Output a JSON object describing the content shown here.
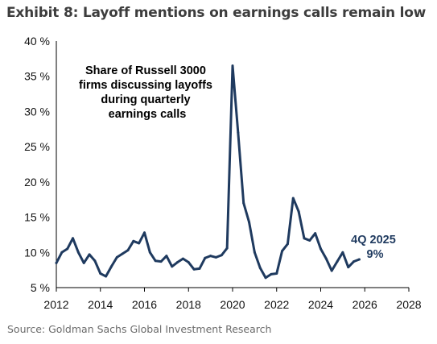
{
  "header": {
    "title": "Exhibit 8: Layoff mentions on earnings calls remain low"
  },
  "footer": {
    "source": "Source: Goldman Sachs Global Investment Research"
  },
  "colors": {
    "series": "#1f3a5f",
    "axis": "#000000",
    "text": "#111111"
  },
  "chart_data": {
    "type": "line",
    "title": "",
    "xlabel": "",
    "ylabel": "",
    "xlim": [
      2012,
      2028
    ],
    "ylim": [
      5,
      40
    ],
    "grid": false,
    "legend": "none",
    "x_ticks": [
      {
        "value": 2012,
        "label": "2012"
      },
      {
        "value": 2014,
        "label": "2014"
      },
      {
        "value": 2016,
        "label": "2016"
      },
      {
        "value": 2018,
        "label": "2018"
      },
      {
        "value": 2020,
        "label": "2020"
      },
      {
        "value": 2022,
        "label": "2022"
      },
      {
        "value": 2024,
        "label": "2024"
      },
      {
        "value": 2026,
        "label": "2026"
      },
      {
        "value": 2028,
        "label": "2028"
      }
    ],
    "y_ticks": [
      {
        "value": 5,
        "label": "5 %"
      },
      {
        "value": 10,
        "label": "10 %"
      },
      {
        "value": 15,
        "label": "15 %"
      },
      {
        "value": 20,
        "label": "20 %"
      },
      {
        "value": 25,
        "label": "25 %"
      },
      {
        "value": 30,
        "label": "30 %"
      },
      {
        "value": 35,
        "label": "35 %"
      },
      {
        "value": 40,
        "label": "40 %"
      }
    ],
    "annotation": [
      "Share of Russell 3000",
      "firms discussing layoffs",
      "during quarterly",
      "earnings calls"
    ],
    "end_label": [
      "4Q 2025",
      "9%"
    ],
    "series": [
      {
        "x": [
          2012.0,
          2012.25,
          2012.5,
          2012.75,
          2013.0,
          2013.25,
          2013.5,
          2013.75,
          2014.0,
          2014.25,
          2014.5,
          2014.75,
          2015.0,
          2015.25,
          2015.5,
          2015.75,
          2016.0,
          2016.25,
          2016.5,
          2016.75,
          2017.0,
          2017.25,
          2017.5,
          2017.75,
          2018.0,
          2018.25,
          2018.5,
          2018.75,
          2019.0,
          2019.25,
          2019.5,
          2019.75,
          2020.0,
          2020.25,
          2020.5,
          2020.75,
          2021.0,
          2021.25,
          2021.5,
          2021.75,
          2022.0,
          2022.25,
          2022.5,
          2022.75,
          2023.0,
          2023.25,
          2023.5,
          2023.75,
          2024.0,
          2024.25,
          2024.5,
          2024.75,
          2025.0,
          2025.25,
          2025.5,
          2025.75
        ],
        "values": [
          8.5,
          10.0,
          10.5,
          12.0,
          10.0,
          8.5,
          9.7,
          8.8,
          7.0,
          6.6,
          8.0,
          9.3,
          9.8,
          10.3,
          11.6,
          11.3,
          12.8,
          10.0,
          8.8,
          8.7,
          9.5,
          8.0,
          8.6,
          9.1,
          8.6,
          7.6,
          7.7,
          9.2,
          9.5,
          9.3,
          9.6,
          10.6,
          36.5,
          27.0,
          17.0,
          14.3,
          10.0,
          7.8,
          6.4,
          6.9,
          7.0,
          10.2,
          11.2,
          17.7,
          15.8,
          12.0,
          11.7,
          12.7,
          10.5,
          9.1,
          7.4,
          8.7,
          10.0,
          7.9,
          8.7,
          9.0
        ]
      }
    ]
  }
}
